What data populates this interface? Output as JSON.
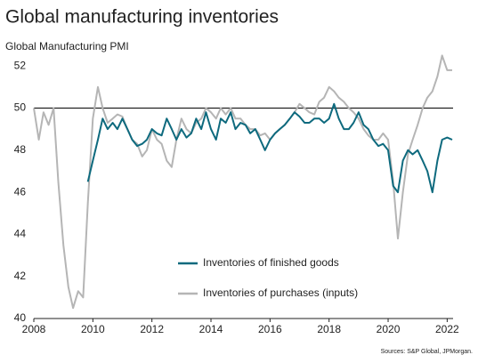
{
  "chart_data": {
    "type": "line",
    "title": "Global manufacturing inventories",
    "y_label": "Global Manufacturing PMI",
    "source": "Sources: S&P Global, JPMorgan.",
    "x": [
      2008,
      2008.17,
      2008.33,
      2008.5,
      2008.67,
      2008.83,
      2009,
      2009.17,
      2009.33,
      2009.5,
      2009.67,
      2009.83,
      2010,
      2010.17,
      2010.33,
      2010.5,
      2010.67,
      2010.83,
      2011,
      2011.17,
      2011.33,
      2011.5,
      2011.67,
      2011.83,
      2012,
      2012.17,
      2012.33,
      2012.5,
      2012.67,
      2012.83,
      2013,
      2013.17,
      2013.33,
      2013.5,
      2013.67,
      2013.83,
      2014,
      2014.17,
      2014.33,
      2014.5,
      2014.67,
      2014.83,
      2015,
      2015.17,
      2015.33,
      2015.5,
      2015.67,
      2015.83,
      2016,
      2016.17,
      2016.33,
      2016.5,
      2016.67,
      2016.83,
      2017,
      2017.17,
      2017.33,
      2017.5,
      2017.67,
      2017.83,
      2018,
      2018.17,
      2018.33,
      2018.5,
      2018.67,
      2018.83,
      2019,
      2019.17,
      2019.33,
      2019.5,
      2019.67,
      2019.83,
      2020,
      2020.17,
      2020.33,
      2020.5,
      2020.67,
      2020.83,
      2021,
      2021.17,
      2021.33,
      2021.5,
      2021.67,
      2021.83,
      2022,
      2022.17
    ],
    "series": [
      {
        "name": "Inventories of finished goods",
        "color": "#0e6a7e",
        "values": [
          null,
          null,
          null,
          null,
          null,
          null,
          null,
          null,
          null,
          null,
          null,
          46.5,
          47.5,
          48.5,
          49.5,
          49.0,
          49.3,
          49.0,
          49.5,
          49.0,
          48.5,
          48.2,
          48.3,
          48.5,
          49.0,
          48.8,
          48.7,
          49.5,
          49.0,
          48.5,
          49.0,
          48.6,
          48.8,
          49.5,
          49.0,
          49.8,
          49.0,
          48.5,
          49.5,
          49.3,
          49.8,
          49.0,
          49.3,
          49.2,
          48.8,
          49.0,
          48.5,
          48.0,
          48.5,
          48.8,
          49.0,
          49.2,
          49.5,
          49.8,
          49.6,
          49.3,
          49.3,
          49.5,
          49.5,
          49.3,
          49.5,
          50.2,
          49.5,
          49.0,
          49.0,
          49.3,
          49.8,
          49.2,
          49.0,
          48.5,
          48.2,
          48.3,
          48.0,
          46.3,
          46.0,
          47.5,
          48.0,
          47.8,
          48.0,
          47.5,
          47.0,
          46.0,
          47.5,
          48.5,
          48.6,
          48.5
        ]
      },
      {
        "name": "Inventories of purchases (inputs)",
        "color": "#b5b5b5",
        "values": [
          50.0,
          48.5,
          49.8,
          49.2,
          50.0,
          46.5,
          43.5,
          41.5,
          40.5,
          41.3,
          41.0,
          45.5,
          49.5,
          51.0,
          50.0,
          49.3,
          49.5,
          49.7,
          49.6,
          49.0,
          48.5,
          48.3,
          47.7,
          48.0,
          49.0,
          48.5,
          48.3,
          47.5,
          47.2,
          48.5,
          49.5,
          49.0,
          48.8,
          49.3,
          49.5,
          50.0,
          49.8,
          49.5,
          50.0,
          49.7,
          50.0,
          49.5,
          49.5,
          49.2,
          49.0,
          49.0,
          48.7,
          48.8,
          48.5,
          48.8,
          49.0,
          49.2,
          49.5,
          49.8,
          50.2,
          50.0,
          49.8,
          49.7,
          50.3,
          50.5,
          51.0,
          50.8,
          50.5,
          50.3,
          50.0,
          49.8,
          49.5,
          49.0,
          48.7,
          48.5,
          48.5,
          48.8,
          48.5,
          46.5,
          43.8,
          46.0,
          47.8,
          48.5,
          49.2,
          50.0,
          50.5,
          50.8,
          51.5,
          52.5,
          51.8,
          51.8
        ]
      }
    ],
    "xlim": [
      2008,
      2022.2
    ],
    "xticks": [
      2008,
      2010,
      2012,
      2014,
      2016,
      2018,
      2020,
      2022
    ],
    "ylim": [
      40,
      52.6
    ],
    "yticks": [
      40,
      42,
      44,
      46,
      48,
      50,
      52
    ],
    "baseline": 50
  }
}
